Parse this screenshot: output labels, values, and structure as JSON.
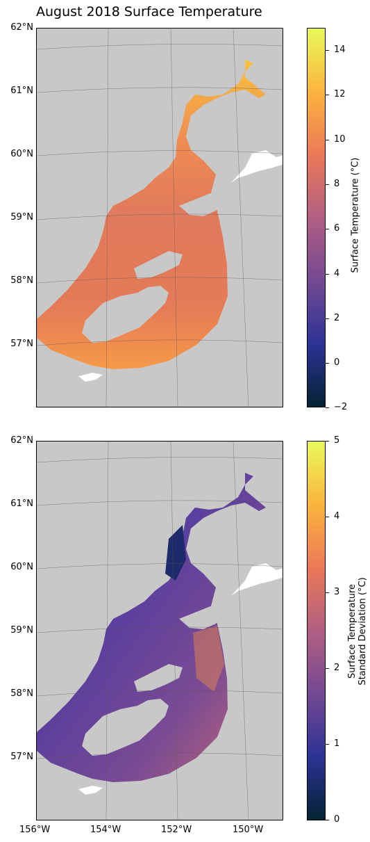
{
  "title": "August 2018 Surface Temperature",
  "lat_labels": [
    "62°N",
    "61°N",
    "60°N",
    "59°N",
    "58°N",
    "57°N"
  ],
  "lon_labels": [
    "156°W",
    "154°W",
    "152°W",
    "150°W"
  ],
  "top_colorbar": {
    "label": "Surface Temperature (°C)",
    "ticks": [
      "14",
      "12",
      "10",
      "8",
      "6",
      "4",
      "2",
      "0",
      "−2"
    ],
    "range": [
      -2,
      15
    ],
    "colormap": [
      "#042333",
      "#2c3395",
      "#744992",
      "#b15f82",
      "#eb7958",
      "#fbb43d",
      "#e8fa5b"
    ]
  },
  "bottom_colorbar": {
    "label_line1": "Surface Temperature",
    "label_line2": "Standard Deviation (°C)",
    "ticks": [
      "5",
      "4",
      "3",
      "2",
      "1",
      "0"
    ],
    "range": [
      0,
      5
    ],
    "colormap": [
      "#042333",
      "#2c3395",
      "#744992",
      "#b15f82",
      "#eb7958",
      "#fbb43d",
      "#e8fa5b"
    ]
  },
  "colors": {
    "land": "#c8c8c8",
    "ocean_mask": "#ffffff"
  }
}
